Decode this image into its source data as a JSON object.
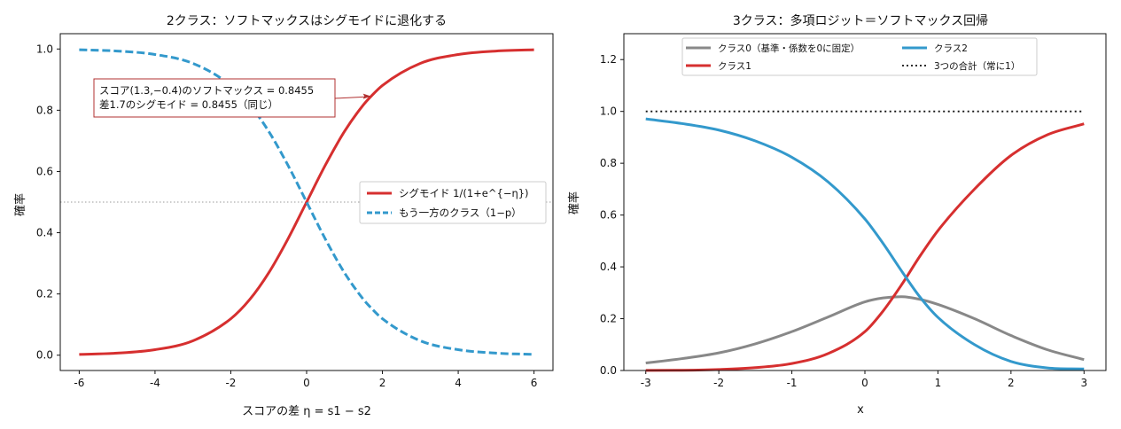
{
  "chart_data": [
    {
      "type": "line",
      "title": "2クラス：ソフトマックスはシグモイドに退化する",
      "xlabel": "スコアの差 η = s1 − s2",
      "ylabel": "確率",
      "xlim": [
        -6.5,
        6.5
      ],
      "ylim": [
        -0.05,
        1.05
      ],
      "xticks": [
        -6,
        -4,
        -2,
        0,
        2,
        4,
        6
      ],
      "yticks": [
        0.0,
        0.2,
        0.4,
        0.6,
        0.8,
        1.0
      ],
      "xtick_labels": [
        "-6",
        "-4",
        "-2",
        "0",
        "2",
        "4",
        "6"
      ],
      "ytick_labels": [
        "0.0",
        "0.2",
        "0.4",
        "0.6",
        "0.8",
        "1.0"
      ],
      "grid": false,
      "legend_position": "center-right",
      "reference_line": {
        "y": 0.5,
        "style": "dotted",
        "color": "#999999"
      },
      "x": [
        -6,
        -5,
        -4,
        -3,
        -2,
        -1.5,
        -1,
        -0.5,
        0,
        0.5,
        1,
        1.5,
        1.7,
        2,
        3,
        4,
        5,
        6
      ],
      "series": [
        {
          "name": "シグモイド 1/(1+e^{−η})",
          "color": "#d62f2f",
          "style": "solid",
          "values": [
            0.0025,
            0.0067,
            0.018,
            0.047,
            0.119,
            0.182,
            0.269,
            0.378,
            0.5,
            0.622,
            0.731,
            0.818,
            0.8455,
            0.881,
            0.953,
            0.982,
            0.9933,
            0.9975
          ]
        },
        {
          "name": "もう一方のクラス（1−p）",
          "color": "#3399cc",
          "style": "dashed",
          "values": [
            0.9975,
            0.9933,
            0.982,
            0.953,
            0.881,
            0.818,
            0.731,
            0.622,
            0.5,
            0.378,
            0.269,
            0.182,
            0.1545,
            0.119,
            0.047,
            0.018,
            0.0067,
            0.0025
          ]
        }
      ],
      "annotation": {
        "lines": [
          "スコア(1.3,−0.4)のソフトマックス = 0.8455",
          "差1.7のシグモイド = 0.8455（同じ）"
        ],
        "point": [
          1.7,
          0.8455
        ],
        "arrow_color": "#b03030",
        "box_border": "#b03030"
      }
    },
    {
      "type": "line",
      "title": "3クラス：多項ロジット＝ソフトマックス回帰",
      "xlabel": "x",
      "ylabel": "確率",
      "xlim": [
        -3.3,
        3.3
      ],
      "ylim": [
        0,
        1.3
      ],
      "xticks": [
        -3,
        -2,
        -1,
        0,
        1,
        2,
        3
      ],
      "yticks": [
        0.0,
        0.2,
        0.4,
        0.6,
        0.8,
        1.0,
        1.2
      ],
      "xtick_labels": [
        "-3",
        "-2",
        "-1",
        "0",
        "1",
        "2",
        "3"
      ],
      "ytick_labels": [
        "0.0",
        "0.2",
        "0.4",
        "0.6",
        "0.8",
        "1.0",
        "1.2"
      ],
      "grid": false,
      "legend_position": "top-center",
      "x": [
        -3,
        -2.5,
        -2,
        -1.5,
        -1,
        -0.5,
        0,
        0.25,
        0.5,
        0.75,
        1,
        1.5,
        2,
        2.5,
        3
      ],
      "series": [
        {
          "name": "クラス0（基準・係数を0に固定）",
          "color": "#888888",
          "style": "solid",
          "values": [
            0.029,
            0.046,
            0.068,
            0.103,
            0.15,
            0.207,
            0.265,
            0.28,
            0.285,
            0.275,
            0.255,
            0.2,
            0.135,
            0.08,
            0.042
          ]
        },
        {
          "name": "クラス1",
          "color": "#d62f2f",
          "style": "solid",
          "values": [
            0.0003,
            0.001,
            0.004,
            0.011,
            0.027,
            0.066,
            0.15,
            0.23,
            0.33,
            0.44,
            0.54,
            0.7,
            0.83,
            0.91,
            0.952
          ]
        },
        {
          "name": "クラス2",
          "color": "#3399cc",
          "style": "solid",
          "values": [
            0.971,
            0.953,
            0.928,
            0.886,
            0.823,
            0.727,
            0.585,
            0.49,
            0.385,
            0.285,
            0.205,
            0.1,
            0.035,
            0.01,
            0.006
          ]
        },
        {
          "name": "3つの合計（常に1）",
          "color": "#111111",
          "style": "dotted",
          "values": [
            1,
            1,
            1,
            1,
            1,
            1,
            1,
            1,
            1,
            1,
            1,
            1,
            1,
            1,
            1
          ]
        }
      ]
    }
  ]
}
